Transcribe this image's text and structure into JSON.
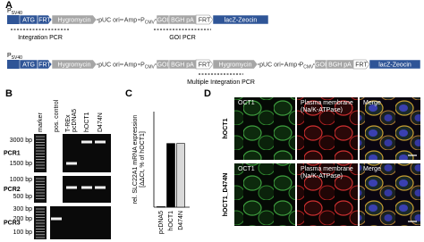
{
  "panel_a": {
    "label": "A",
    "constructs": [
      {
        "promoter": {
          "main": "P",
          "sub": "SV40"
        },
        "elements": [
          "ATG",
          "FRT",
          "Hygromycin",
          "pUC ori",
          "Amp",
          {
            "main": "P",
            "sub": "CMV"
          },
          "GOI",
          "BGH pA",
          "FRT",
          "lacZ-Zeocin"
        ],
        "pcr": [
          "Integration PCR",
          "GOI PCR"
        ]
      },
      {
        "promoter": {
          "main": "P",
          "sub": "SV40"
        },
        "elements": [
          "ATG",
          "FRT",
          "Hygromycin",
          "pUC ori",
          "Amp",
          {
            "main": "P",
            "sub": "CMV"
          },
          "GOI",
          "BGH pA",
          "FRT",
          "Hygromycin",
          "pUC ori",
          "Amp",
          {
            "main": "P",
            "sub": "CMV"
          },
          "GOI",
          "BGH pA",
          "FRT",
          "lacZ-Zeocin"
        ],
        "pcr": [
          "Multiple Integration PCR"
        ]
      }
    ]
  },
  "panel_b": {
    "label": "B",
    "lanes": [
      "marker",
      "pos. control",
      [
        "T-REx",
        "pcDNA5"
      ],
      "hOCT1",
      "D474N"
    ],
    "gels": [
      {
        "name": "PCR1",
        "markers": [
          "3000 bp",
          "1500 bp"
        ]
      },
      {
        "name": "PCR2",
        "markers": [
          "1000 bp",
          "500 bp"
        ]
      },
      {
        "name": "PCR3",
        "markers": [
          "300 bp",
          "200 bp",
          "100 bp"
        ]
      }
    ]
  },
  "chart_data": {
    "type": "bar",
    "label": "C",
    "ylabel": [
      "rel. SLC22A1 mRNA expression",
      "[ΔΔCt, % of hOCT1]"
    ],
    "categories": [
      "pcDNA5",
      "hOCT1",
      "D474N"
    ],
    "values": [
      1,
      100,
      100
    ],
    "colors": [
      "#ffffff",
      "#000000",
      "#d9d9d9"
    ],
    "ylim": [
      0,
      150
    ]
  },
  "panel_d": {
    "label": "D",
    "columns": [
      "OCT1",
      [
        "Plasma membrane",
        "(Na/K-ATPase)"
      ],
      "Merge"
    ],
    "rows": [
      "hOCT1",
      "hOCT1_D474N"
    ]
  }
}
